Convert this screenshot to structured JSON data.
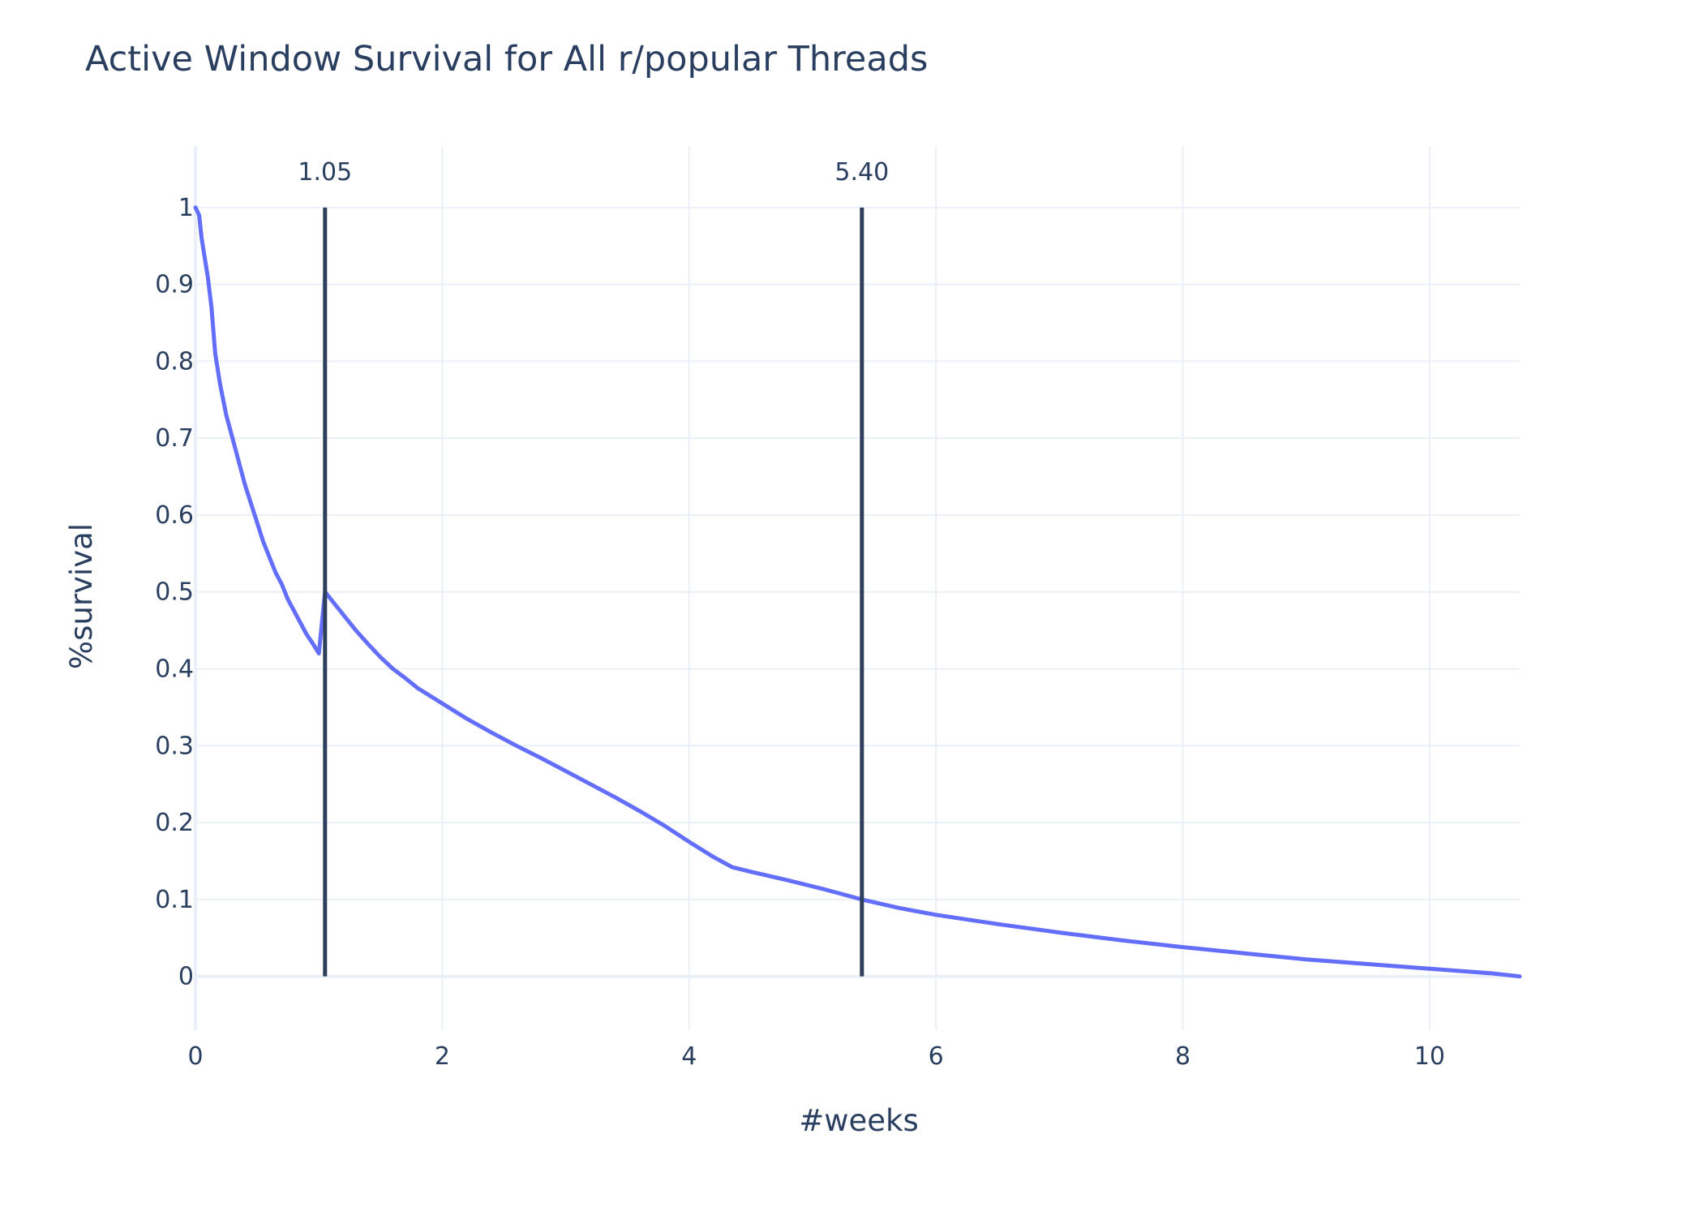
{
  "chart_data": {
    "type": "line",
    "title": "Active Window Survival for All r/popular Threads",
    "xlabel": "#weeks",
    "ylabel": "%survival",
    "xlim": [
      0,
      10.73
    ],
    "ylim": [
      -0.07,
      1.08
    ],
    "xticks": [
      0,
      2,
      4,
      6,
      8,
      10
    ],
    "xtick_labels": [
      "0",
      "2",
      "4",
      "6",
      "8",
      "10"
    ],
    "yticks": [
      0,
      0.1,
      0.2,
      0.3,
      0.4,
      0.5,
      0.6,
      0.7,
      0.8,
      0.9,
      1
    ],
    "ytick_labels": [
      "0",
      "0.1",
      "0.2",
      "0.3",
      "0.4",
      "0.5",
      "0.6",
      "0.7",
      "0.8",
      "0.9",
      "1"
    ],
    "grid": true,
    "legend": "none",
    "series": [
      {
        "color": "#636efa",
        "x": [
          0,
          0.03,
          0.05,
          0.1,
          0.13,
          0.16,
          0.2,
          0.25,
          0.3,
          0.35,
          0.4,
          0.45,
          0.5,
          0.55,
          0.6,
          0.65,
          0.7,
          0.75,
          0.8,
          0.85,
          0.9,
          0.95,
          1.0,
          1.05,
          1.1,
          1.2,
          1.3,
          1.4,
          1.5,
          1.6,
          1.7,
          1.8,
          1.9,
          2.0,
          2.2,
          2.4,
          2.6,
          2.8,
          3.0,
          3.2,
          3.4,
          3.6,
          3.8,
          4.0,
          4.2,
          4.35,
          4.5,
          4.8,
          5.1,
          5.4,
          5.7,
          6.0,
          6.5,
          7.0,
          7.5,
          8.0,
          8.5,
          9.0,
          9.5,
          10.0,
          10.5,
          10.73
        ],
        "y": [
          1,
          0.99,
          0.96,
          0.91,
          0.87,
          0.81,
          0.77,
          0.73,
          0.7,
          0.67,
          0.64,
          0.615,
          0.59,
          0.565,
          0.545,
          0.525,
          0.51,
          0.49,
          0.475,
          0.46,
          0.445,
          0.433,
          0.42,
          0.5,
          0.49,
          0.47,
          0.45,
          0.432,
          0.415,
          0.4,
          0.388,
          0.375,
          0.365,
          0.355,
          0.335,
          0.317,
          0.3,
          0.284,
          0.267,
          0.25,
          0.233,
          0.215,
          0.196,
          0.175,
          0.155,
          0.142,
          0.136,
          0.125,
          0.113,
          0.1,
          0.089,
          0.08,
          0.068,
          0.057,
          0.047,
          0.038,
          0.03,
          0.022,
          0.016,
          0.01,
          0.004,
          0.0
        ]
      }
    ],
    "vlines": [
      {
        "x": 1.05,
        "label": "1.05",
        "color": "#2e3f5c"
      },
      {
        "x": 5.4,
        "label": "5.40",
        "color": "#2e3f5c"
      }
    ],
    "colors": {
      "line": "#636efa",
      "vline": "#2e3f5c",
      "grid": "#ebf0f8",
      "zeroline": "#ebf0f8",
      "text": "#2a3f5f",
      "background": "#ffffff"
    }
  }
}
